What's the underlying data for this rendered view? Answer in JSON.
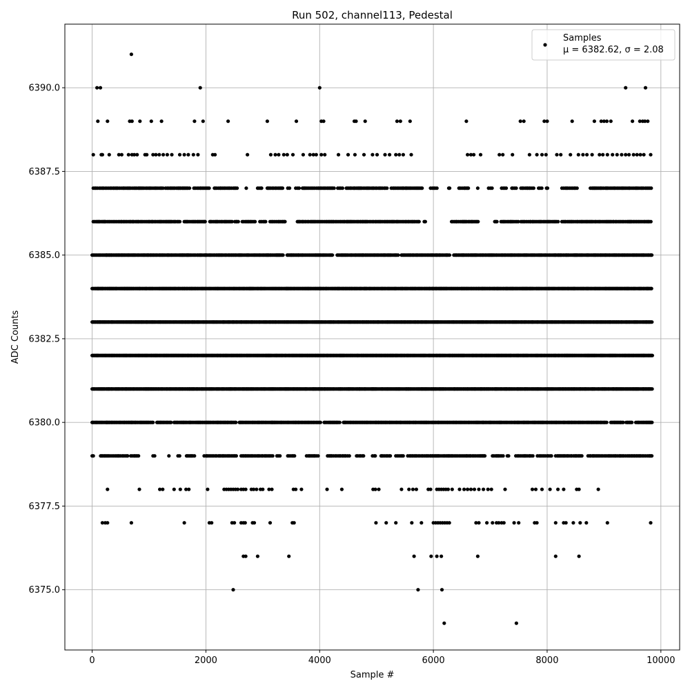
{
  "chart_data": {
    "type": "scatter",
    "title": "Run 502, channel113, Pedestal",
    "xlabel": "Sample #",
    "ylabel": "ADC Counts",
    "xlim": [
      -480,
      10330
    ],
    "ylim": [
      6373.2,
      6391.9
    ],
    "xticks": [
      0,
      2000,
      4000,
      6000,
      8000,
      10000
    ],
    "xtick_labels": [
      "0",
      "2000",
      "4000",
      "6000",
      "8000",
      "10000"
    ],
    "yticks": [
      6375.0,
      6377.5,
      6380.0,
      6382.5,
      6385.0,
      6387.5,
      6390.0
    ],
    "ytick_labels": [
      "6375.0",
      "6377.5",
      "6380.0",
      "6382.5",
      "6385.0",
      "6387.5",
      "6390.0"
    ],
    "grid": true,
    "legend": {
      "placement": "top-right",
      "label_line1": "Samples",
      "label_line2": "μ = 6382.62, σ = 2.08"
    },
    "marker_color": "#000000",
    "series": [
      {
        "name": "Samples",
        "rows": [
          {
            "y": 6391,
            "x": [
              690
            ]
          },
          {
            "y": 6390,
            "x": [
              85,
              145,
              1900,
              4000,
              9380,
              9730
            ]
          },
          {
            "y": 6389,
            "x": [
              100,
              270,
              660,
              700,
              840,
              1040,
              1220,
              1800,
              1950,
              2390,
              3080,
              3590,
              4030,
              4070,
              4610,
              4640,
              4800,
              5360,
              5420,
              5590,
              6580,
              7530,
              7590,
              7950,
              8000,
              8440,
              8830,
              8950,
              9000,
              9050,
              9120,
              9500,
              9630,
              9680,
              9720,
              9770
            ]
          },
          {
            "y": 6388,
            "x": [
              20,
              160,
              180,
              300,
              470,
              520,
              640,
              700,
              740,
              790,
              930,
              960,
              1070,
              1120,
              1180,
              1250,
              1320,
              1400,
              1540,
              1620,
              1690,
              1780,
              1860,
              2120,
              2160,
              2730,
              3140,
              3220,
              3280,
              3370,
              3430,
              3530,
              3710,
              3830,
              3890,
              3940,
              4030,
              4090,
              4330,
              4500,
              4620,
              4780,
              4930,
              5010,
              5150,
              5230,
              5340,
              5400,
              5470,
              5610,
              6600,
              6660,
              6710,
              6830,
              7160,
              7220,
              7390,
              7690,
              7820,
              7910,
              7980,
              8170,
              8240,
              8410,
              8550,
              8630,
              8700,
              8790,
              8920,
              8980,
              9060,
              9150,
              9230,
              9310,
              9380,
              9440,
              9520,
              9580,
              9640,
              9700,
              9820
            ]
          },
          {
            "y": 6387,
            "x_ranges": [
              [
                20,
                1260
              ],
              [
                1290,
                1720
              ],
              [
                1790,
                2090
              ],
              [
                2150,
                2560
              ],
              [
                2710,
                2740
              ],
              [
                2910,
                3000
              ],
              [
                3080,
                3360
              ],
              [
                3440,
                3480
              ],
              [
                3580,
                3650
              ],
              [
                3700,
                4270
              ],
              [
                4320,
                4420
              ],
              [
                4470,
                5200
              ],
              [
                5260,
                5810
              ],
              [
                5950,
                6080
              ],
              [
                6270,
                6300
              ],
              [
                6450,
                6640
              ],
              [
                6780,
                6800
              ],
              [
                6970,
                7060
              ],
              [
                7200,
                7300
              ],
              [
                7380,
                7460
              ],
              [
                7540,
                7780
              ],
              [
                7850,
                7910
              ],
              [
                7990,
                8020
              ],
              [
                8260,
                8540
              ],
              [
                8760,
                9850
              ]
            ],
            "step": 24
          },
          {
            "y": 6386,
            "x_ranges": [
              [
                20,
                520
              ],
              [
                520,
                1560
              ],
              [
                1620,
                2000
              ],
              [
                2070,
                2460
              ],
              [
                2510,
                2580
              ],
              [
                2640,
                2880
              ],
              [
                2950,
                3060
              ],
              [
                3130,
                3400
              ],
              [
                3610,
                5000
              ],
              [
                5020,
                5760
              ],
              [
                5840,
                5880
              ],
              [
                6320,
                6800
              ],
              [
                7080,
                7140
              ],
              [
                7190,
                7500
              ],
              [
                7540,
                8200
              ],
              [
                8260,
                9850
              ]
            ],
            "step": 22
          },
          {
            "y": 6385,
            "x_ranges": [
              [
                0,
                1830
              ],
              [
                1850,
                3370
              ],
              [
                3430,
                4230
              ],
              [
                4310,
                5400
              ],
              [
                5440,
                6300
              ],
              [
                6360,
                9850
              ]
            ],
            "step": 18
          },
          {
            "y": 6384,
            "x_ranges": [
              [
                0,
                9850
              ]
            ],
            "step": 14
          },
          {
            "y": 6383,
            "x_ranges": [
              [
                0,
                9850
              ]
            ],
            "step": 12
          },
          {
            "y": 6382,
            "x_ranges": [
              [
                0,
                9850
              ]
            ],
            "step": 12
          },
          {
            "y": 6381,
            "x_ranges": [
              [
                0,
                9850
              ]
            ],
            "step": 13
          },
          {
            "y": 6380,
            "x_ranges": [
              [
                0,
                1080
              ],
              [
                1140,
                1400
              ],
              [
                1440,
                2530
              ],
              [
                2590,
                4020
              ],
              [
                4080,
                4360
              ],
              [
                4420,
                9060
              ],
              [
                9120,
                9340
              ],
              [
                9390,
                9500
              ],
              [
                9560,
                9850
              ]
            ],
            "step": 16
          },
          {
            "y": 6379,
            "x_ranges": [
              [
                0,
                30
              ],
              [
                150,
                630
              ],
              [
                680,
                830
              ],
              [
                1070,
                1100
              ],
              [
                1350,
                1380
              ],
              [
                1510,
                1540
              ],
              [
                1660,
                1820
              ],
              [
                1970,
                2550
              ],
              [
                2620,
                3190
              ],
              [
                3250,
                3320
              ],
              [
                3440,
                3580
              ],
              [
                3770,
                4000
              ],
              [
                4140,
                4550
              ],
              [
                4650,
                4780
              ],
              [
                4930,
                4980
              ],
              [
                5080,
                5260
              ],
              [
                5340,
                5480
              ],
              [
                5550,
                6930
              ],
              [
                7040,
                7240
              ],
              [
                7300,
                7330
              ],
              [
                7450,
                7760
              ],
              [
                7830,
                8080
              ],
              [
                8150,
                8620
              ],
              [
                8720,
                9860
              ]
            ],
            "step": 24
          },
          {
            "y": 6378,
            "x": [
              270,
              830,
              1190,
              1240,
              1440,
              1550,
              1650,
              1700,
              2030,
              2320,
              2360,
              2400,
              2440,
              2480,
              2520,
              2560,
              2620,
              2660,
              2700,
              2800,
              2840,
              2890,
              2960,
              3000,
              3110,
              3160,
              3540,
              3580,
              3680,
              4130,
              4390,
              4940,
              4980,
              5040,
              5440,
              5570,
              5640,
              5700,
              5910,
              5950,
              6060,
              6100,
              6140,
              6180,
              6220,
              6260,
              6330,
              6460,
              6540,
              6600,
              6660,
              6720,
              6800,
              6880,
              6960,
              7020,
              7260,
              7740,
              7800,
              7910,
              8050,
              8190,
              8290,
              8520,
              8560,
              8900
            ]
          },
          {
            "y": 6377,
            "x": [
              180,
              230,
              270,
              690,
              1620,
              2060,
              2100,
              2460,
              2500,
              2620,
              2660,
              2690,
              2820,
              2850,
              3130,
              3520,
              3550,
              4990,
              5170,
              5340,
              5620,
              5790,
              6000,
              6040,
              6080,
              6120,
              6160,
              6200,
              6240,
              6280,
              6750,
              6800,
              6940,
              7040,
              7110,
              7150,
              7200,
              7240,
              7420,
              7500,
              7780,
              7820,
              8150,
              8290,
              8330,
              8460,
              8580,
              8690,
              9060,
              9820
            ]
          },
          {
            "y": 6376,
            "x": [
              2660,
              2700,
              2910,
              3460,
              5660,
              5960,
              6060,
              6140,
              6780,
              8150,
              8560
            ]
          },
          {
            "y": 6375,
            "x": [
              2480,
              5730,
              6150
            ]
          },
          {
            "y": 6374,
            "x": [
              6190,
              7460
            ]
          }
        ]
      }
    ]
  }
}
